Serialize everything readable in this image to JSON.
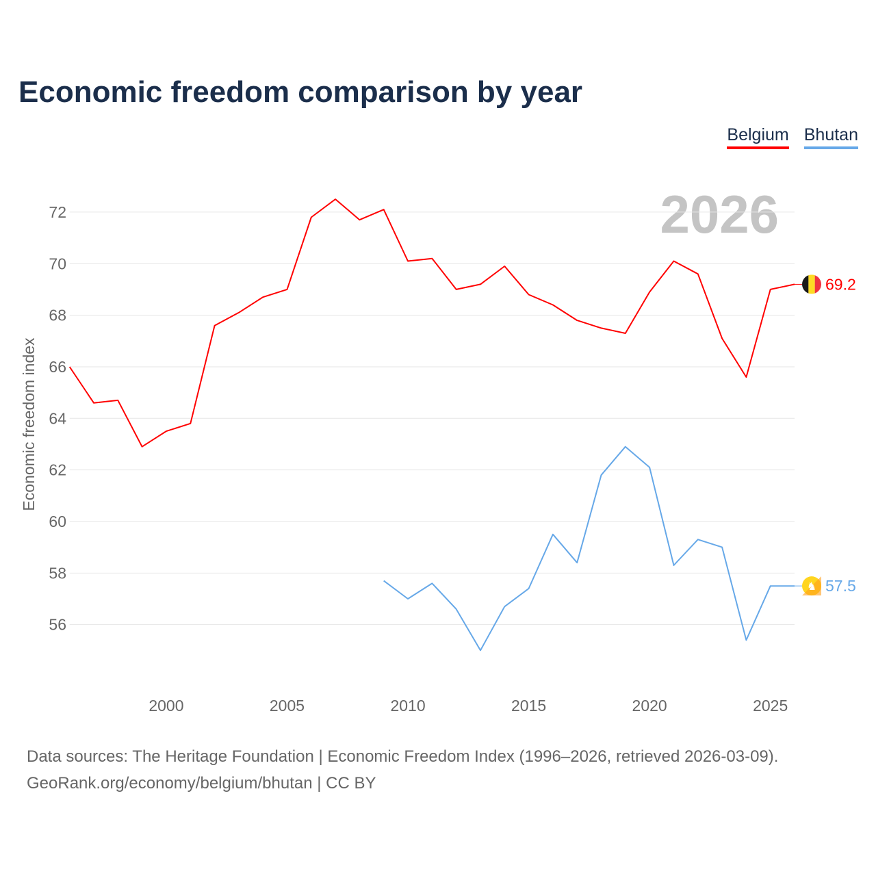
{
  "title": "Economic freedom comparison by year",
  "legend": [
    {
      "label": "Belgium",
      "color": "#ff0000"
    },
    {
      "label": "Bhutan",
      "color": "#66a8e8"
    }
  ],
  "source_line1": "Data sources: The Heritage Foundation | Economic Freedom Index (1996–2026, retrieved 2026-03-09).",
  "source_line2": "GeoRank.org/economy/belgium/bhutan | CC BY",
  "chart_data": {
    "type": "line",
    "title": "Economic freedom comparison by year",
    "xlabel": "",
    "ylabel": "Economic freedom index",
    "year_watermark": "2026",
    "xlim": [
      1996,
      2026
    ],
    "ylim": [
      54,
      73.06
    ],
    "x_ticks": [
      2000,
      2005,
      2010,
      2015,
      2020,
      2025
    ],
    "y_ticks": [
      56,
      58,
      60,
      62,
      64,
      66,
      68,
      70,
      72
    ],
    "grid": true,
    "legend_position": "top-right",
    "series": [
      {
        "name": "Belgium",
        "color": "#ff0000",
        "end_label": "69.2",
        "x": [
          1996,
          1997,
          1998,
          1999,
          2000,
          2001,
          2002,
          2003,
          2004,
          2005,
          2006,
          2007,
          2008,
          2009,
          2010,
          2011,
          2012,
          2013,
          2014,
          2015,
          2016,
          2017,
          2018,
          2019,
          2020,
          2021,
          2022,
          2023,
          2024,
          2025,
          2026
        ],
        "values": [
          66.0,
          64.6,
          64.7,
          62.9,
          63.5,
          63.8,
          67.6,
          68.1,
          68.7,
          69.0,
          71.8,
          72.5,
          71.7,
          72.1,
          70.1,
          70.2,
          69.0,
          69.2,
          69.9,
          68.8,
          68.4,
          67.8,
          67.5,
          67.3,
          68.9,
          70.1,
          69.6,
          67.1,
          65.6,
          69.0,
          69.2
        ]
      },
      {
        "name": "Bhutan",
        "color": "#66a8e8",
        "end_label": "57.5",
        "x": [
          2009,
          2010,
          2011,
          2012,
          2013,
          2014,
          2015,
          2016,
          2017,
          2018,
          2019,
          2020,
          2021,
          2022,
          2023,
          2024,
          2025,
          2026
        ],
        "values": [
          57.7,
          57.0,
          57.6,
          56.6,
          55.0,
          56.7,
          57.4,
          59.5,
          58.4,
          61.8,
          62.9,
          62.1,
          58.3,
          59.3,
          59.0,
          55.4,
          57.5,
          57.5
        ]
      }
    ]
  }
}
